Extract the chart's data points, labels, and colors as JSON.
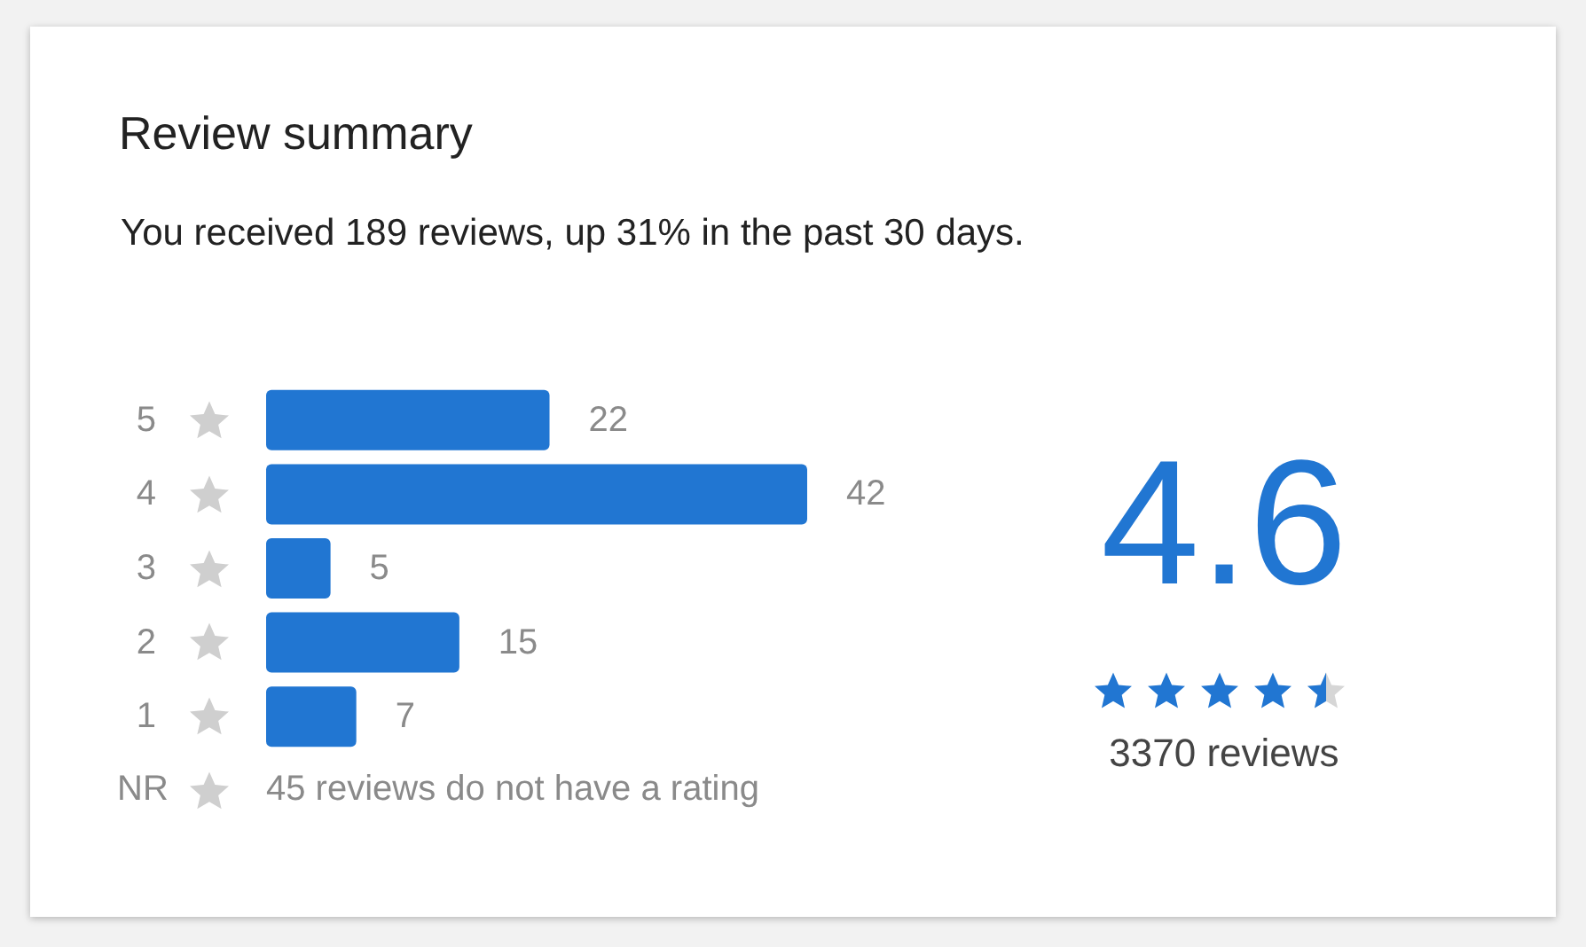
{
  "chart_data": {
    "type": "bar",
    "orientation": "horizontal",
    "title": "Review summary",
    "subtitle": "You received 189 reviews, up 31% in the past 30 days.",
    "categories": [
      "5",
      "4",
      "3",
      "2",
      "1"
    ],
    "values": [
      22,
      42,
      5,
      15,
      7
    ],
    "color": "#2176d2",
    "data_labels": true,
    "annotations": [
      "NR",
      "45 reviews do not have a rating",
      "4.6",
      "3370 reviews"
    ]
  }
}
